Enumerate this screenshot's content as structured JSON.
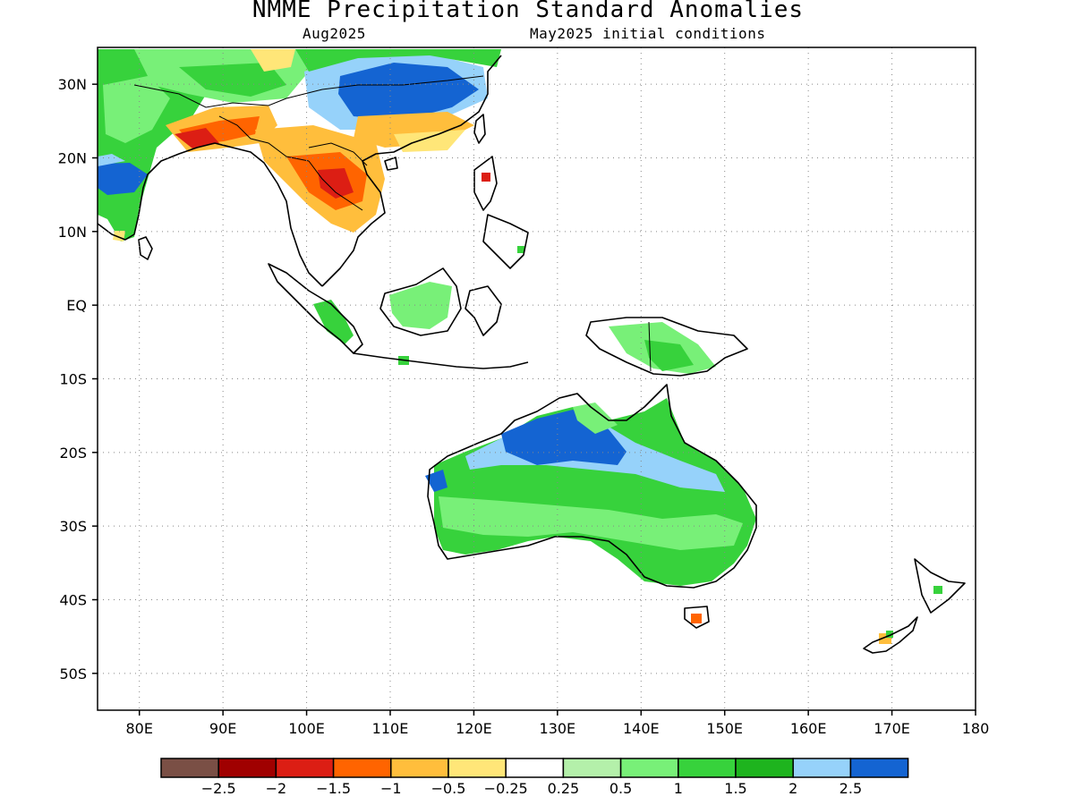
{
  "header": {
    "title": "NMME Precipitation Standard Anomalies",
    "valid_month": "Aug2025",
    "init_conditions": "May2025 initial conditions"
  },
  "map": {
    "lon_range": [
      75,
      180
    ],
    "lat_range": [
      -55,
      35
    ],
    "lat_ticks": [
      {
        "value": 30,
        "label": "30N"
      },
      {
        "value": 20,
        "label": "20N"
      },
      {
        "value": 10,
        "label": "10N"
      },
      {
        "value": 0,
        "label": "EQ"
      },
      {
        "value": -10,
        "label": "10S"
      },
      {
        "value": -20,
        "label": "20S"
      },
      {
        "value": -30,
        "label": "30S"
      },
      {
        "value": -40,
        "label": "40S"
      },
      {
        "value": -50,
        "label": "50S"
      }
    ],
    "lon_ticks": [
      {
        "value": 80,
        "label": "80E"
      },
      {
        "value": 90,
        "label": "90E"
      },
      {
        "value": 100,
        "label": "100E"
      },
      {
        "value": 110,
        "label": "110E"
      },
      {
        "value": 120,
        "label": "120E"
      },
      {
        "value": 130,
        "label": "130E"
      },
      {
        "value": 140,
        "label": "140E"
      },
      {
        "value": 150,
        "label": "150E"
      },
      {
        "value": 160,
        "label": "160E"
      },
      {
        "value": 170,
        "label": "170E"
      },
      {
        "value": 180,
        "label": "180"
      }
    ],
    "grid": "dotted"
  },
  "legend": {
    "colors": [
      "#7a4f45",
      "#a00000",
      "#dc1e14",
      "#ff6400",
      "#ffbe3c",
      "#ffe678",
      "#ffffff",
      "#b4f0aa",
      "#78f078",
      "#37d23c",
      "#1eb41e",
      "#96d2fa",
      "#1464d2"
    ],
    "labels": [
      "-2.5",
      "-2",
      "-1.5",
      "-1",
      "-0.5",
      "-0.25",
      "0.25",
      "0.5",
      "1",
      "1.5",
      "2",
      "2.5"
    ]
  }
}
